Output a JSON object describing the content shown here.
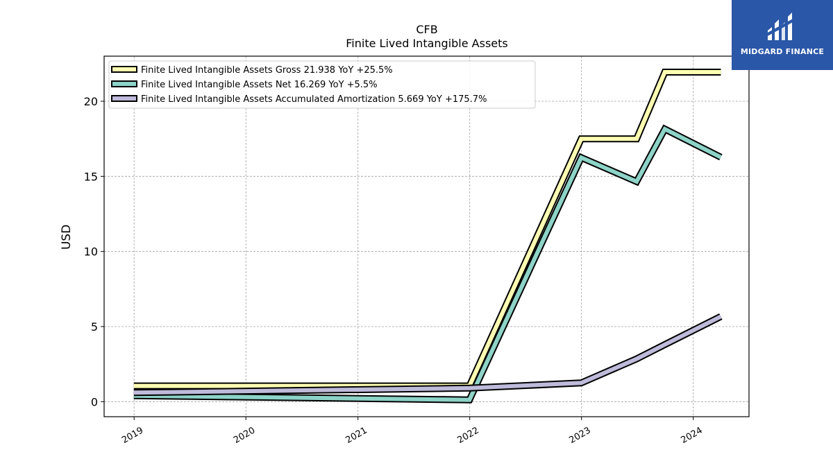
{
  "chart_data": {
    "type": "line",
    "title": "CFB",
    "subtitle": "Finite Lived Intangible Assets",
    "ylabel": "USD",
    "xlabel": "",
    "ylim": [
      -1,
      23
    ],
    "xlim": [
      "2018-09-25",
      "2024-07-01"
    ],
    "yticks": [
      0,
      5,
      10,
      15,
      20
    ],
    "xticks": [
      "2019",
      "2020",
      "2021",
      "2022",
      "2023",
      "2024"
    ],
    "grid": true,
    "legend_position": "top-left",
    "series": [
      {
        "name": "Finite Lived Intangible Assets Gross  21.938 YoY +25.5%",
        "color": "#ffffb3",
        "points": [
          {
            "x": "2018-12-31",
            "y": 1.05
          },
          {
            "x": "2021-12-31",
            "y": 1.05
          },
          {
            "x": "2022-12-31",
            "y": 17.5
          },
          {
            "x": "2023-06-30",
            "y": 17.5
          },
          {
            "x": "2023-09-30",
            "y": 21.94
          },
          {
            "x": "2024-03-31",
            "y": 21.94
          }
        ]
      },
      {
        "name": "Finite Lived Intangible Assets Net  16.269 YoY +5.5%",
        "color": "#8dd3c7",
        "points": [
          {
            "x": "2018-12-31",
            "y": 0.4
          },
          {
            "x": "2021-12-31",
            "y": 0.12
          },
          {
            "x": "2022-12-31",
            "y": 16.25
          },
          {
            "x": "2023-06-30",
            "y": 14.65
          },
          {
            "x": "2023-09-30",
            "y": 18.15
          },
          {
            "x": "2024-03-31",
            "y": 16.27
          }
        ]
      },
      {
        "name": "Finite Lived Intangible Assets Accumulated Amortization  5.669 YoY +175.7%",
        "color": "#bebada",
        "points": [
          {
            "x": "2018-12-31",
            "y": 0.6
          },
          {
            "x": "2021-12-31",
            "y": 0.9
          },
          {
            "x": "2022-12-31",
            "y": 1.25
          },
          {
            "x": "2023-06-30",
            "y": 2.85
          },
          {
            "x": "2023-09-30",
            "y": 3.8
          },
          {
            "x": "2024-03-31",
            "y": 5.67
          }
        ]
      }
    ]
  },
  "logo": {
    "text": "MIDGARD FINANCE",
    "color": "#2a57a8"
  }
}
